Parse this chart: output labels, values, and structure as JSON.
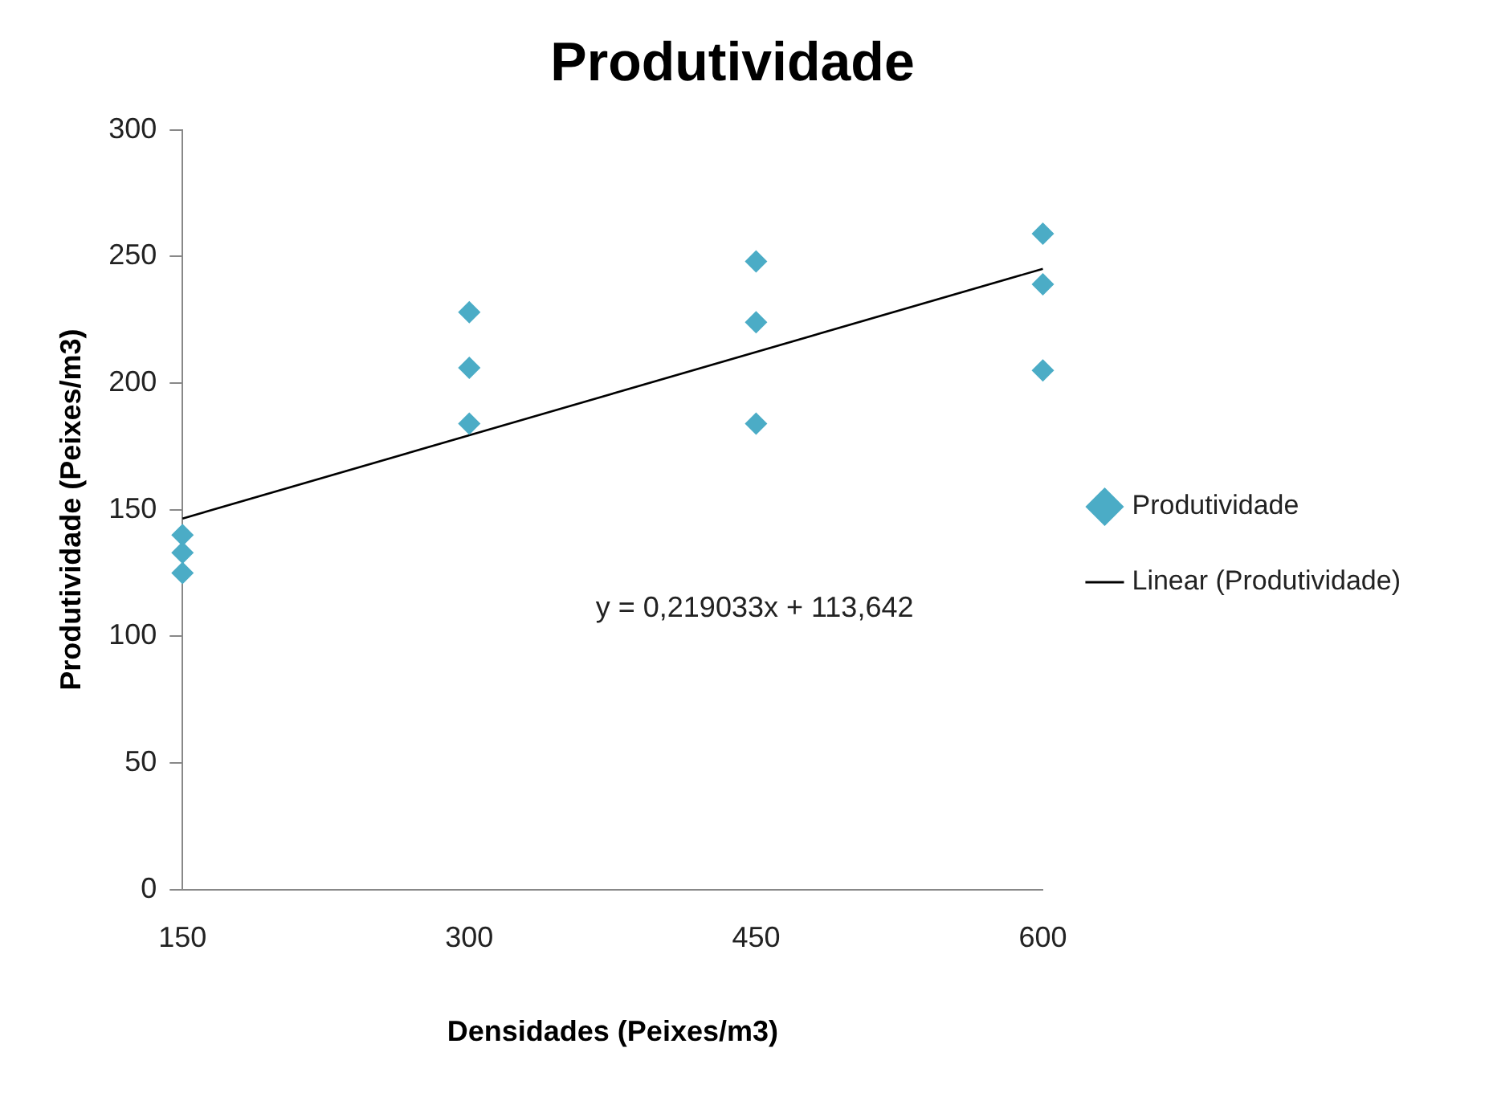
{
  "chart_data": {
    "type": "scatter",
    "title": "Produtividade",
    "xlabel": "Densidades (Peixes/m3)",
    "ylabel": "Produtividade (Peixes/m3)",
    "x": [
      150,
      150,
      150,
      300,
      300,
      300,
      450,
      450,
      450,
      600,
      600,
      600
    ],
    "series": [
      {
        "name": "Produtividade",
        "color": "#4bacc6",
        "type": "scatter",
        "marker": "diamond",
        "values": [
          140,
          133,
          125,
          228,
          206,
          184,
          248,
          224,
          184,
          259,
          239,
          205
        ]
      },
      {
        "name": "Linear (Produtividade)",
        "color": "#000000",
        "type": "line",
        "marker": "none",
        "x": [
          150,
          600
        ],
        "values": [
          146.5,
          245.1
        ]
      }
    ],
    "xlim": [
      150,
      600
    ],
    "xticks": [
      150,
      300,
      450,
      600
    ],
    "ylim": [
      0,
      300
    ],
    "yticks": [
      0,
      50,
      100,
      150,
      200,
      250,
      300
    ],
    "grid": false,
    "legend": "right",
    "annotations": [
      "y = 0,219033x + 113,642"
    ]
  }
}
